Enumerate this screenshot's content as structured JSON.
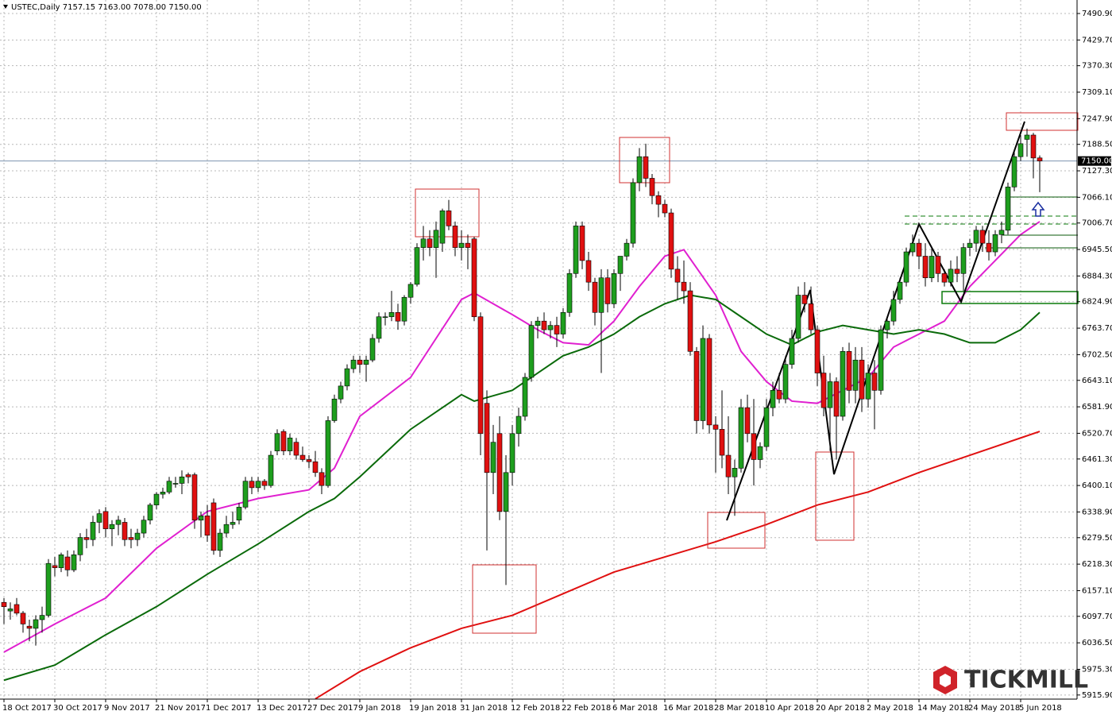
{
  "chart_data": {
    "type": "candlestick",
    "title": "USTEC,Daily  7157.15 7163.00 7078.00 7150.00",
    "watermark": "TICKMILL",
    "bull_color": "#1e9e1e",
    "bear_color": "#e01010",
    "grid": true,
    "ylim": [
      5906.4,
      7522.1
    ],
    "yticks": [
      {
        "value": 7490.9,
        "label": "7490.90"
      },
      {
        "value": 7429.7,
        "label": "7429.70"
      },
      {
        "value": 7370.3,
        "label": "7370.30"
      },
      {
        "value": 7309.1,
        "label": "7309.10"
      },
      {
        "value": 7247.9,
        "label": "7247.90"
      },
      {
        "value": 7188.5,
        "label": "7188.50"
      },
      {
        "value": 7127.3,
        "label": "7127.30"
      },
      {
        "value": 7066.1,
        "label": "7066.10"
      },
      {
        "value": 7006.7,
        "label": "7006.70"
      },
      {
        "value": 6945.5,
        "label": "6945.50"
      },
      {
        "value": 6884.3,
        "label": "6884.30"
      },
      {
        "value": 6824.9,
        "label": "6824.90"
      },
      {
        "value": 6763.7,
        "label": "6763.70"
      },
      {
        "value": 6702.5,
        "label": "6702.50"
      },
      {
        "value": 6643.1,
        "label": "6643.10"
      },
      {
        "value": 6581.9,
        "label": "6581.90"
      },
      {
        "value": 6520.7,
        "label": "6520.70"
      },
      {
        "value": 6461.3,
        "label": "6461.30"
      },
      {
        "value": 6400.1,
        "label": "6400.10"
      },
      {
        "value": 6338.9,
        "label": "6338.90"
      },
      {
        "value": 6279.5,
        "label": "6279.50"
      },
      {
        "value": 6218.3,
        "label": "6218.30"
      },
      {
        "value": 6157.1,
        "label": "6157.10"
      },
      {
        "value": 6097.7,
        "label": "6097.70"
      },
      {
        "value": 6036.5,
        "label": "6036.50"
      },
      {
        "value": 5975.3,
        "label": "5975.30"
      },
      {
        "value": 5915.9,
        "label": "5915.90"
      }
    ],
    "current_price": {
      "value": 7150,
      "label": "7150.00"
    },
    "categories": [
      "18 Oct 2017",
      null,
      null,
      null,
      null,
      null,
      null,
      null,
      "30 Oct 2017",
      null,
      null,
      null,
      null,
      null,
      null,
      null,
      "9 Nov 2017",
      null,
      null,
      null,
      null,
      null,
      null,
      null,
      "21 Nov 2017",
      null,
      null,
      null,
      null,
      null,
      null,
      null,
      "1 Dec 2017",
      null,
      null,
      null,
      null,
      null,
      null,
      null,
      "13 Dec 2017",
      null,
      null,
      null,
      null,
      null,
      null,
      null,
      "27 Dec 2017",
      null,
      null,
      null,
      null,
      null,
      null,
      null,
      "9 Jan 2018",
      null,
      null,
      null,
      null,
      null,
      null,
      null,
      "19 Jan 2018",
      null,
      null,
      null,
      null,
      null,
      null,
      null,
      "31 Jan 2018",
      null,
      null,
      null,
      null,
      null,
      null,
      null,
      "12 Feb 2018",
      null,
      null,
      null,
      null,
      null,
      null,
      null,
      "22 Feb 2018",
      null,
      null,
      null,
      null,
      null,
      null,
      null,
      "6 Mar 2018",
      null,
      null,
      null,
      null,
      null,
      null,
      null,
      "16 Mar 2018",
      null,
      null,
      null,
      null,
      null,
      null,
      null,
      "28 Mar 2018",
      null,
      null,
      null,
      null,
      null,
      null,
      null,
      "10 Apr 2018",
      null,
      null,
      null,
      null,
      null,
      null,
      null,
      "20 Apr 2018",
      null,
      null,
      null,
      null,
      null,
      null,
      null,
      "2 May 2018",
      null,
      null,
      null,
      null,
      null,
      null,
      null,
      "14 May 2018",
      null,
      null,
      null,
      null,
      null,
      null,
      null,
      "24 May 2018",
      null,
      null,
      null,
      null,
      null,
      null,
      null,
      "5 Jun 2018",
      null,
      null,
      null
    ],
    "ohlc": [
      [
        6130,
        6140,
        6080,
        6120
      ],
      [
        6110,
        6130,
        6090,
        6115
      ],
      [
        6125,
        6140,
        6100,
        6105
      ],
      [
        6105,
        6110,
        6060,
        6080
      ],
      [
        6075,
        6090,
        6040,
        6070
      ],
      [
        6070,
        6100,
        6030,
        6090
      ],
      [
        6090,
        6120,
        6060,
        6100
      ],
      [
        6100,
        6230,
        6095,
        6220
      ],
      [
        6215,
        6235,
        6190,
        6210
      ],
      [
        6210,
        6245,
        6200,
        6240
      ],
      [
        6235,
        6250,
        6190,
        6205
      ],
      [
        6205,
        6250,
        6200,
        6240
      ],
      [
        6240,
        6290,
        6225,
        6280
      ],
      [
        6280,
        6300,
        6255,
        6275
      ],
      [
        6275,
        6330,
        6260,
        6315
      ],
      [
        6315,
        6345,
        6290,
        6335
      ],
      [
        6340,
        6350,
        6280,
        6300
      ],
      [
        6300,
        6320,
        6260,
        6310
      ],
      [
        6310,
        6330,
        6285,
        6320
      ],
      [
        6315,
        6325,
        6260,
        6275
      ],
      [
        6280,
        6300,
        6255,
        6275
      ],
      [
        6275,
        6300,
        6260,
        6290
      ],
      [
        6290,
        6330,
        6280,
        6320
      ],
      [
        6320,
        6360,
        6310,
        6355
      ],
      [
        6355,
        6385,
        6345,
        6380
      ],
      [
        6380,
        6395,
        6370,
        6385
      ],
      [
        6385,
        6420,
        6380,
        6410
      ],
      [
        6405,
        6420,
        6395,
        6405
      ],
      [
        6405,
        6435,
        6380,
        6420
      ],
      [
        6425,
        6430,
        6405,
        6420
      ],
      [
        6425,
        6430,
        6300,
        6320
      ],
      [
        6320,
        6340,
        6280,
        6330
      ],
      [
        6330,
        6355,
        6270,
        6285
      ],
      [
        6360,
        6370,
        6240,
        6250
      ],
      [
        6250,
        6300,
        6235,
        6290
      ],
      [
        6290,
        6330,
        6280,
        6310
      ],
      [
        6310,
        6340,
        6300,
        6315
      ],
      [
        6320,
        6360,
        6310,
        6350
      ],
      [
        6350,
        6420,
        6345,
        6410
      ],
      [
        6410,
        6420,
        6380,
        6395
      ],
      [
        6395,
        6420,
        6385,
        6410
      ],
      [
        6410,
        6415,
        6390,
        6400
      ],
      [
        6400,
        6480,
        6395,
        6470
      ],
      [
        6480,
        6530,
        6470,
        6520
      ],
      [
        6525,
        6530,
        6470,
        6480
      ],
      [
        6480,
        6520,
        6470,
        6510
      ],
      [
        6500,
        6510,
        6460,
        6470
      ],
      [
        6470,
        6490,
        6455,
        6460
      ],
      [
        6460,
        6470,
        6440,
        6455
      ],
      [
        6455,
        6480,
        6420,
        6430
      ],
      [
        6430,
        6440,
        6380,
        6400
      ],
      [
        6400,
        6560,
        6395,
        6550
      ],
      [
        6550,
        6610,
        6545,
        6600
      ],
      [
        6600,
        6640,
        6590,
        6630
      ],
      [
        6630,
        6680,
        6620,
        6670
      ],
      [
        6670,
        6700,
        6660,
        6690
      ],
      [
        6690,
        6700,
        6660,
        6680
      ],
      [
        6680,
        6700,
        6640,
        6690
      ],
      [
        6690,
        6750,
        6685,
        6740
      ],
      [
        6740,
        6800,
        6730,
        6790
      ],
      [
        6790,
        6800,
        6770,
        6790
      ],
      [
        6790,
        6850,
        6780,
        6800
      ],
      [
        6800,
        6820,
        6760,
        6780
      ],
      [
        6780,
        6840,
        6770,
        6835
      ],
      [
        6835,
        6870,
        6820,
        6865
      ],
      [
        6865,
        6960,
        6860,
        6950
      ],
      [
        6950,
        7000,
        6920,
        6970
      ],
      [
        6970,
        6990,
        6930,
        6950
      ],
      [
        6950,
        7010,
        6880,
        6990
      ],
      [
        6960,
        7040,
        6940,
        7035
      ],
      [
        7035,
        7060,
        6990,
        7000
      ],
      [
        7000,
        7010,
        6930,
        6950
      ],
      [
        6950,
        6990,
        6920,
        6960
      ],
      [
        6960,
        6980,
        6900,
        6950
      ],
      [
        6970,
        6975,
        6780,
        6790
      ],
      [
        6790,
        6800,
        6470,
        6520
      ],
      [
        6590,
        6620,
        6250,
        6430
      ],
      [
        6430,
        6540,
        6380,
        6500
      ],
      [
        6520,
        6560,
        6320,
        6340
      ],
      [
        6340,
        6470,
        6170,
        6430
      ],
      [
        6430,
        6540,
        6400,
        6520
      ],
      [
        6520,
        6580,
        6490,
        6560
      ],
      [
        6560,
        6660,
        6550,
        6650
      ],
      [
        6650,
        6780,
        6640,
        6770
      ],
      [
        6770,
        6790,
        6740,
        6780
      ],
      [
        6780,
        6800,
        6750,
        6760
      ],
      [
        6760,
        6780,
        6740,
        6770
      ],
      [
        6770,
        6790,
        6720,
        6750
      ],
      [
        6750,
        6810,
        6740,
        6800
      ],
      [
        6800,
        6900,
        6790,
        6890
      ],
      [
        6890,
        7010,
        6880,
        7000
      ],
      [
        7000,
        7010,
        6900,
        6920
      ],
      [
        6920,
        6940,
        6850,
        6870
      ],
      [
        6870,
        6880,
        6770,
        6800
      ],
      [
        6800,
        6900,
        6660,
        6880
      ],
      [
        6880,
        6900,
        6800,
        6820
      ],
      [
        6820,
        6900,
        6810,
        6890
      ],
      [
        6890,
        6930,
        6850,
        6930
      ],
      [
        6930,
        6970,
        6920,
        6960
      ],
      [
        6960,
        7110,
        6950,
        7100
      ],
      [
        7100,
        7180,
        7080,
        7160
      ],
      [
        7160,
        7190,
        7090,
        7110
      ],
      [
        7110,
        7120,
        7050,
        7070
      ],
      [
        7070,
        7080,
        7020,
        7050
      ],
      [
        7050,
        7060,
        7020,
        7030
      ],
      [
        7030,
        7040,
        6880,
        6900
      ],
      [
        6900,
        6930,
        6830,
        6870
      ],
      [
        6870,
        6920,
        6820,
        6850
      ],
      [
        6850,
        6870,
        6700,
        6710
      ],
      [
        6710,
        6720,
        6520,
        6550
      ],
      [
        6550,
        6770,
        6530,
        6740
      ],
      [
        6740,
        6750,
        6520,
        6540
      ],
      [
        6540,
        6560,
        6430,
        6530
      ],
      [
        6530,
        6620,
        6440,
        6470
      ],
      [
        6470,
        6560,
        6380,
        6420
      ],
      [
        6420,
        6460,
        6330,
        6440
      ],
      [
        6440,
        6600,
        6430,
        6580
      ],
      [
        6580,
        6610,
        6500,
        6520
      ],
      [
        6520,
        6600,
        6400,
        6460
      ],
      [
        6460,
        6500,
        6440,
        6490
      ],
      [
        6490,
        6600,
        6480,
        6580
      ],
      [
        6580,
        6640,
        6560,
        6620
      ],
      [
        6620,
        6660,
        6590,
        6600
      ],
      [
        6600,
        6700,
        6590,
        6680
      ],
      [
        6680,
        6760,
        6670,
        6740
      ],
      [
        6740,
        6860,
        6730,
        6840
      ],
      [
        6840,
        6870,
        6800,
        6820
      ],
      [
        6820,
        6860,
        6750,
        6760
      ],
      [
        6760,
        6770,
        6630,
        6660
      ],
      [
        6660,
        6700,
        6560,
        6580
      ],
      [
        6580,
        6660,
        6480,
        6640
      ],
      [
        6640,
        6650,
        6460,
        6560
      ],
      [
        6560,
        6720,
        6550,
        6710
      ],
      [
        6710,
        6730,
        6590,
        6620
      ],
      [
        6620,
        6720,
        6590,
        6690
      ],
      [
        6690,
        6720,
        6570,
        6600
      ],
      [
        6600,
        6680,
        6580,
        6660
      ],
      [
        6660,
        6690,
        6530,
        6620
      ],
      [
        6620,
        6770,
        6610,
        6760
      ],
      [
        6760,
        6790,
        6740,
        6780
      ],
      [
        6780,
        6850,
        6770,
        6830
      ],
      [
        6830,
        6880,
        6820,
        6870
      ],
      [
        6870,
        6950,
        6860,
        6940
      ],
      [
        6940,
        6980,
        6930,
        6960
      ],
      [
        6960,
        6970,
        6900,
        6930
      ],
      [
        6930,
        6960,
        6860,
        6880
      ],
      [
        6880,
        6950,
        6870,
        6930
      ],
      [
        6930,
        6940,
        6870,
        6890
      ],
      [
        6890,
        6900,
        6860,
        6870
      ],
      [
        6870,
        6920,
        6860,
        6900
      ],
      [
        6900,
        6930,
        6870,
        6890
      ],
      [
        6890,
        6960,
        6850,
        6950
      ],
      [
        6950,
        6970,
        6930,
        6960
      ],
      [
        6960,
        7000,
        6940,
        6990
      ],
      [
        6990,
        7000,
        6940,
        6960
      ],
      [
        6960,
        6990,
        6920,
        6940
      ],
      [
        6940,
        6990,
        6930,
        6980
      ],
      [
        6980,
        7010,
        6960,
        6990
      ],
      [
        6990,
        7100,
        6980,
        7090
      ],
      [
        7090,
        7170,
        7080,
        7160
      ],
      [
        7160,
        7210,
        7150,
        7190
      ],
      [
        7200,
        7225,
        7160,
        7210
      ],
      [
        7210,
        7215,
        7110,
        7157
      ],
      [
        7157.15,
        7163,
        7078,
        7150
      ]
    ],
    "lines": [
      {
        "color": "#e020d0",
        "x": [
          0,
          8,
          16,
          24,
          32,
          40,
          48,
          52,
          56,
          64,
          72,
          74,
          80,
          84,
          88,
          92,
          96,
          100,
          104,
          107,
          112,
          116,
          120,
          124,
          128,
          132,
          136,
          140,
          144,
          148,
          152,
          156,
          160,
          163
        ],
        "values": [
          6015,
          6080,
          6140,
          6255,
          6340,
          6370,
          6390,
          6440,
          6560,
          6650,
          6830,
          6845,
          6795,
          6760,
          6730,
          6725,
          6780,
          6860,
          6930,
          6945,
          6840,
          6710,
          6640,
          6595,
          6590,
          6620,
          6650,
          6720,
          6750,
          6780,
          6860,
          6920,
          6980,
          7010
        ]
      },
      {
        "color": "#0a6a0a",
        "x": [
          0,
          8,
          16,
          24,
          32,
          40,
          48,
          52,
          56,
          64,
          72,
          74,
          80,
          84,
          88,
          92,
          96,
          100,
          104,
          108,
          112,
          116,
          120,
          124,
          128,
          132,
          136,
          140,
          144,
          148,
          152,
          156,
          160,
          163
        ],
        "values": [
          5950,
          5985,
          6055,
          6120,
          6195,
          6265,
          6340,
          6370,
          6420,
          6530,
          6610,
          6595,
          6620,
          6660,
          6700,
          6720,
          6750,
          6790,
          6820,
          6840,
          6830,
          6790,
          6750,
          6725,
          6755,
          6770,
          6760,
          6750,
          6760,
          6750,
          6730,
          6730,
          6760,
          6800
        ]
      },
      {
        "color": "#e01010",
        "x": [
          49,
          56,
          64,
          72,
          80,
          88,
          96,
          104,
          112,
          120,
          128,
          136,
          144,
          152,
          160,
          163
        ],
        "values": [
          5907,
          5970,
          6025,
          6070,
          6100,
          6150,
          6200,
          6235,
          6270,
          6310,
          6355,
          6385,
          6430,
          6470,
          6510,
          6525
        ]
      }
    ]
  }
}
